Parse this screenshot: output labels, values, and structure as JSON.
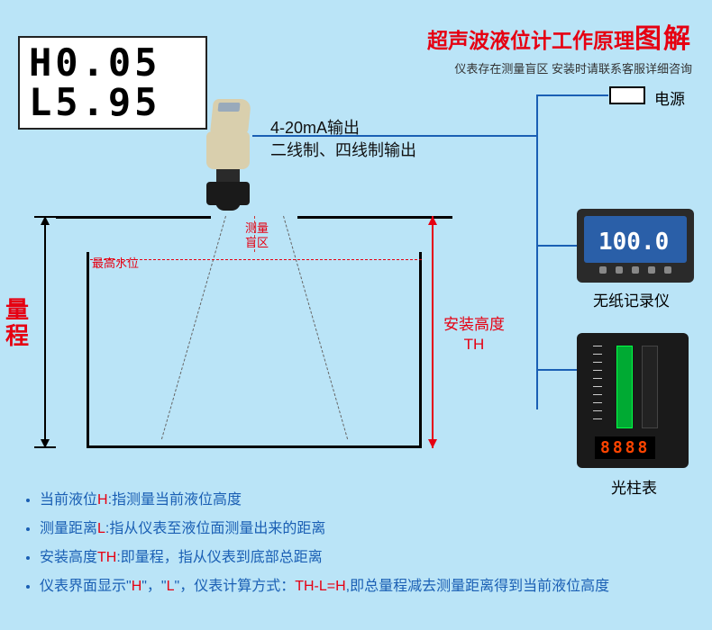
{
  "title": {
    "black": "超声波液位计工作原理",
    "red_big": "图解",
    "subtitle": "仪表存在测量盲区  安装时请联系客服详细咨询",
    "title_color_black": "#e60012",
    "title_color_red": "#e60012"
  },
  "lcd": {
    "line1": "H0.05",
    "line2": "L5.95",
    "bg": "#ffffff",
    "border": "#222222",
    "fontsize": 42
  },
  "output": {
    "line1": "4-20mA输出",
    "line2": "二线制、四线制输出"
  },
  "tank": {
    "blind_zone_label": "测量\n盲区",
    "max_level_label": "最高水位",
    "range_label": "量\n程",
    "install_height_label": "安装高度\nTH",
    "line_color": "#000000",
    "red": "#e60012"
  },
  "devices": {
    "power_label": "电源",
    "recorder_label": "无纸记录仪",
    "recorder_value": "100.0",
    "bargraph_label": "光柱表",
    "bargraph_digits": "8888",
    "wire_color": "#1a5fb4"
  },
  "notes": {
    "n1a": "当前液位",
    "n1h": "H",
    "n1b": ":指测量当前液位高度",
    "n2a": "测量距离",
    "n2l": "L",
    "n2b": ":指从仪表至液位面测量出来的距离",
    "n3a": "安装高度",
    "n3t": "TH",
    "n3b": ":即量程，指从仪表到底部总距离",
    "n4a": "仪表界面显示\"",
    "n4h": "H",
    "n4m1": "\"，\"",
    "n4l": "L",
    "n4m2": "\"，仪表计算方式：",
    "n4eq": "TH-L=H",
    "n4b": ",即总量程减去测量距离得到当前液位高度"
  },
  "colors": {
    "background": "#bae4f7",
    "note_blue": "#1a5fb4",
    "accent_red": "#e60012"
  }
}
